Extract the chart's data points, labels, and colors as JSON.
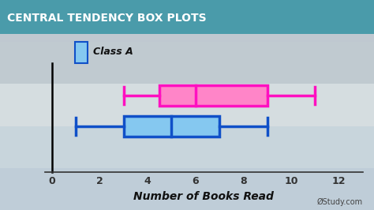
{
  "title": "CENTRAL TENDENCY BOX PLOTS",
  "xlabel": "Number of Books Read",
  "xticks": [
    0,
    2,
    4,
    6,
    8,
    10,
    12
  ],
  "xlim": [
    -0.3,
    13
  ],
  "ylim": [
    0.0,
    3.2
  ],
  "pink_box": {
    "whisker_low": 3.0,
    "q1": 4.5,
    "median": 6.0,
    "q3": 9.0,
    "whisker_high": 11.0,
    "y_center": 2.25,
    "height": 0.6,
    "facecolor": "#FF85C8",
    "edgecolor": "#FF10C0",
    "linewidth": 2.5
  },
  "blue_box": {
    "whisker_low": 1.0,
    "q1": 3.0,
    "median": 5.0,
    "q3": 7.0,
    "whisker_high": 9.0,
    "y_center": 1.35,
    "height": 0.6,
    "facecolor": "#85C8F0",
    "edgecolor": "#1050C8",
    "linewidth": 2.5
  },
  "legend_label": "Class A",
  "legend_box_color": "#85C8F0",
  "legend_box_edge": "#1050C8",
  "title_bg_color": "#4A9BAA",
  "title_text_color": "#FFFFFF",
  "title_fontsize": 10,
  "xlabel_fontsize": 10,
  "bg_photo_color_top": "#C8D8E0",
  "bg_photo_color_bottom": "#D0DCDC",
  "vline_x": 0,
  "study_text": "ØStudy.com",
  "axis_label_color": "#333333"
}
